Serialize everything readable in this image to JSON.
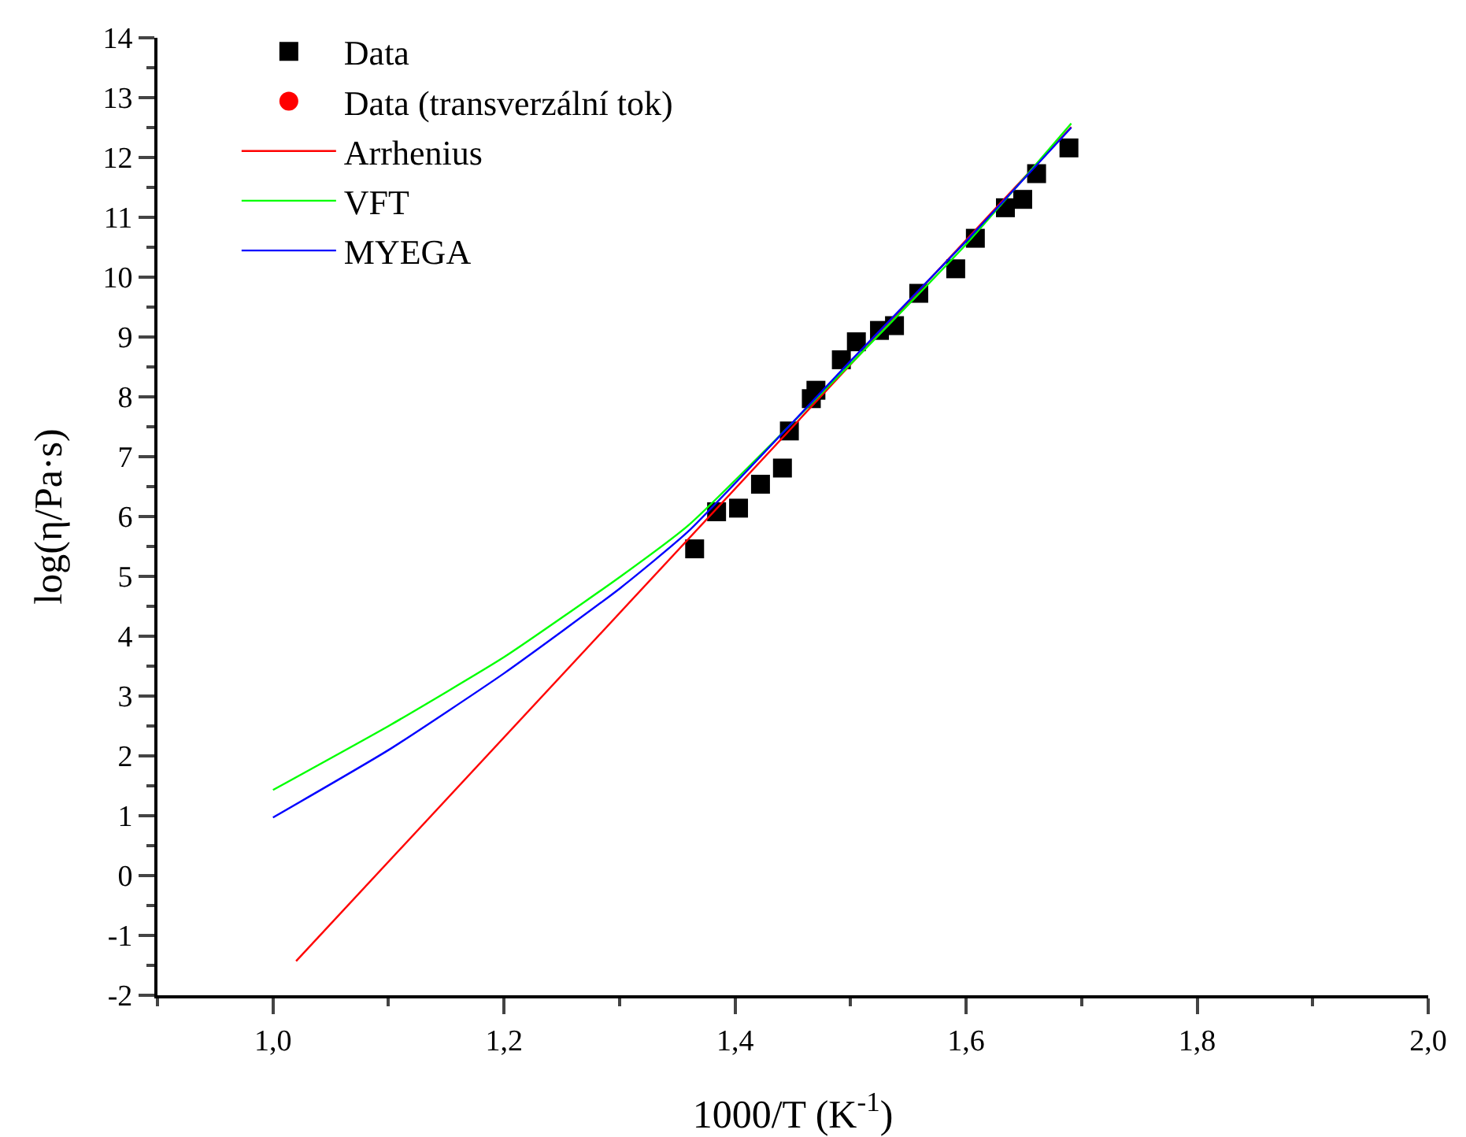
{
  "chart_data": {
    "type": "scatter",
    "xlabel": "1000/T (K$^{-1}$)",
    "ylabel": "log(η/Pa·s)",
    "xlim": [
      0.9,
      2.0
    ],
    "xticks": [
      {
        "value": 1.0,
        "label": "1,0"
      },
      {
        "value": 1.2,
        "label": "1,2"
      },
      {
        "value": 1.4,
        "label": "1,4"
      },
      {
        "value": 1.6,
        "label": "1,6"
      },
      {
        "value": 1.8,
        "label": "1,8"
      },
      {
        "value": 2.0,
        "label": "2,0"
      }
    ],
    "ylim": [
      -2,
      14
    ],
    "yticks": [
      -2,
      -1,
      0,
      1,
      2,
      3,
      4,
      5,
      6,
      7,
      8,
      9,
      10,
      11,
      12,
      13,
      14
    ],
    "grid": false,
    "legend": "top left",
    "series": [
      {
        "name": "Data",
        "marker": "square",
        "color": "#000000",
        "x": [
          1.365,
          1.384,
          1.403,
          1.422,
          1.441,
          1.447,
          1.466,
          1.47,
          1.492,
          1.505,
          1.525,
          1.538,
          1.559,
          1.591,
          1.608,
          1.634,
          1.649,
          1.661,
          1.689
        ],
        "values": [
          5.46,
          6.08,
          6.14,
          6.54,
          6.81,
          7.43,
          7.97,
          8.11,
          8.62,
          8.92,
          9.11,
          9.19,
          9.73,
          10.14,
          10.65,
          11.16,
          11.3,
          11.73,
          12.16
        ]
      },
      {
        "name": "Data (transverzální tok)",
        "marker": "circle",
        "color": "#ff0000"
      },
      {
        "name": "Arrhenius",
        "type": "line",
        "marker": "none",
        "color": "#ff0000",
        "x": [
          1.02,
          1.691
        ],
        "values": [
          -1.43,
          12.51
        ]
      },
      {
        "name": "VFT",
        "type": "line",
        "marker": "none",
        "color": "#00ff00",
        "x": [
          1.0,
          1.101,
          1.2,
          1.301,
          1.36,
          1.5,
          1.6,
          1.691
        ],
        "values": [
          1.43,
          2.51,
          3.65,
          5.0,
          5.86,
          8.55,
          10.55,
          12.57
        ]
      },
      {
        "name": "MYEGA",
        "type": "line",
        "marker": "none",
        "color": "#0000ff",
        "x": [
          1.0,
          1.101,
          1.2,
          1.301,
          1.36,
          1.5,
          1.6,
          1.691
        ],
        "values": [
          0.97,
          2.11,
          3.38,
          4.81,
          5.76,
          8.6,
          10.6,
          12.5
        ]
      }
    ]
  }
}
